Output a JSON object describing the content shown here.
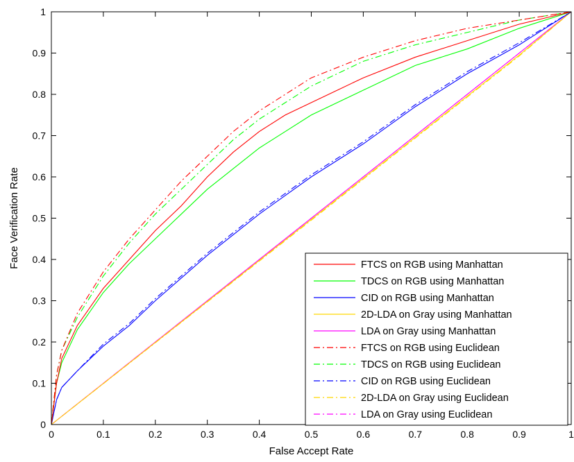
{
  "chart_data": {
    "type": "line",
    "xlabel": "False Accept Rate",
    "ylabel": "Face Verification Rate",
    "xlim": [
      0,
      1
    ],
    "ylim": [
      0,
      1
    ],
    "xticks": [
      "0",
      "0.1",
      "0.2",
      "0.3",
      "0.4",
      "0.5",
      "0.6",
      "0.7",
      "0.8",
      "0.9",
      "1"
    ],
    "yticks": [
      "0",
      "0.1",
      "0.2",
      "0.3",
      "0.4",
      "0.5",
      "0.6",
      "0.7",
      "0.8",
      "0.9",
      "1"
    ],
    "grid": false,
    "legend_position": "bottom-right",
    "series": [
      {
        "name": "FTCS on RGB using Manhattan",
        "color": "#ff0000",
        "style": "solid",
        "x": [
          0,
          0.01,
          0.02,
          0.05,
          0.1,
          0.15,
          0.2,
          0.25,
          0.3,
          0.35,
          0.4,
          0.45,
          0.5,
          0.6,
          0.7,
          0.8,
          0.9,
          1
        ],
        "y": [
          0,
          0.1,
          0.16,
          0.24,
          0.33,
          0.4,
          0.47,
          0.53,
          0.6,
          0.66,
          0.71,
          0.75,
          0.78,
          0.84,
          0.89,
          0.93,
          0.97,
          1
        ]
      },
      {
        "name": "TDCS on RGB using Manhattan",
        "color": "#00ff00",
        "style": "solid",
        "x": [
          0,
          0.01,
          0.02,
          0.05,
          0.1,
          0.15,
          0.2,
          0.25,
          0.3,
          0.35,
          0.4,
          0.45,
          0.5,
          0.6,
          0.7,
          0.8,
          0.9,
          1
        ],
        "y": [
          0,
          0.1,
          0.15,
          0.23,
          0.32,
          0.39,
          0.45,
          0.51,
          0.57,
          0.62,
          0.67,
          0.71,
          0.75,
          0.81,
          0.87,
          0.91,
          0.96,
          1
        ]
      },
      {
        "name": "CID on RGB using Manhattan",
        "color": "#0000ff",
        "style": "solid",
        "x": [
          0,
          0.01,
          0.02,
          0.05,
          0.1,
          0.15,
          0.2,
          0.3,
          0.4,
          0.5,
          0.6,
          0.7,
          0.8,
          0.9,
          1
        ],
        "y": [
          0,
          0.06,
          0.09,
          0.13,
          0.19,
          0.24,
          0.3,
          0.41,
          0.51,
          0.6,
          0.68,
          0.77,
          0.85,
          0.92,
          1
        ]
      },
      {
        "name": "2D-LDA on Gray using Manhattan",
        "color": "#ffd800",
        "style": "solid",
        "x": [
          0,
          0.5,
          0.9,
          1
        ],
        "y": [
          0,
          0.497,
          0.895,
          1
        ]
      },
      {
        "name": "LDA on Gray using Manhattan",
        "color": "#ff00ff",
        "style": "solid",
        "x": [
          0,
          1
        ],
        "y": [
          0,
          1
        ]
      },
      {
        "name": "FTCS on RGB using Euclidean",
        "color": "#ff0000",
        "style": "dashdot",
        "x": [
          0,
          0.01,
          0.02,
          0.05,
          0.1,
          0.15,
          0.2,
          0.25,
          0.3,
          0.35,
          0.4,
          0.45,
          0.5,
          0.6,
          0.7,
          0.8,
          0.9,
          1
        ],
        "y": [
          0,
          0.12,
          0.18,
          0.27,
          0.37,
          0.45,
          0.52,
          0.59,
          0.65,
          0.71,
          0.76,
          0.8,
          0.84,
          0.89,
          0.93,
          0.96,
          0.98,
          1
        ]
      },
      {
        "name": "TDCS on RGB using Euclidean",
        "color": "#00ff00",
        "style": "dashdot",
        "x": [
          0,
          0.01,
          0.02,
          0.05,
          0.1,
          0.15,
          0.2,
          0.25,
          0.3,
          0.35,
          0.4,
          0.45,
          0.5,
          0.6,
          0.7,
          0.8,
          0.9,
          1
        ],
        "y": [
          0,
          0.12,
          0.18,
          0.26,
          0.36,
          0.44,
          0.51,
          0.57,
          0.63,
          0.69,
          0.74,
          0.78,
          0.82,
          0.88,
          0.92,
          0.95,
          0.98,
          1
        ]
      },
      {
        "name": "CID on RGB using Euclidean",
        "color": "#0000ff",
        "style": "dashdot",
        "x": [
          0,
          0.01,
          0.02,
          0.05,
          0.1,
          0.15,
          0.2,
          0.3,
          0.4,
          0.5,
          0.6,
          0.7,
          0.8,
          0.9,
          1
        ],
        "y": [
          0,
          0.06,
          0.09,
          0.13,
          0.195,
          0.245,
          0.305,
          0.415,
          0.515,
          0.605,
          0.685,
          0.775,
          0.855,
          0.925,
          1
        ]
      },
      {
        "name": "2D-LDA on Gray using Euclidean",
        "color": "#ffd800",
        "style": "dashdot",
        "x": [
          0,
          0.5,
          0.9,
          1
        ],
        "y": [
          0,
          0.495,
          0.893,
          1
        ]
      },
      {
        "name": "LDA on Gray using Euclidean",
        "color": "#ff00ff",
        "style": "dashdot",
        "x": [
          0,
          1
        ],
        "y": [
          0,
          1
        ]
      }
    ]
  }
}
